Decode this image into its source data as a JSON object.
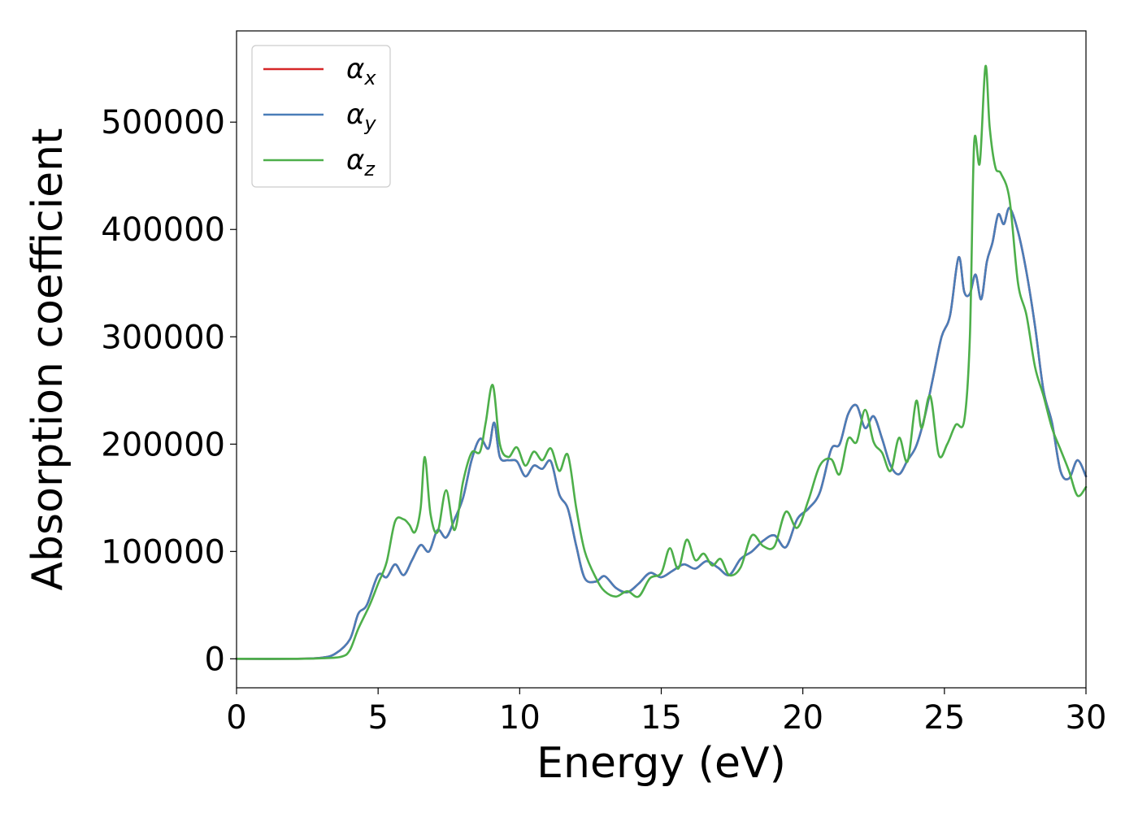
{
  "chart_data": {
    "type": "line",
    "title": "",
    "xlabel": "Energy (eV)",
    "ylabel": "Absorption coefficient",
    "xlim": [
      0,
      30
    ],
    "ylim": [
      -27000,
      585000
    ],
    "xticks": [
      0,
      5,
      10,
      15,
      20,
      25,
      30
    ],
    "yticks": [
      0,
      100000,
      200000,
      300000,
      400000,
      500000
    ],
    "grid": false,
    "legend_position": "top-left",
    "series": [
      {
        "name": "α_x",
        "symbol": "α",
        "subscript": "x",
        "color": "#d62728",
        "x": [
          0,
          2,
          3,
          3.5,
          4,
          4.3,
          4.6,
          5,
          5.3,
          5.6,
          5.9,
          6.2,
          6.5,
          6.8,
          7.1,
          7.4,
          7.7,
          8,
          8.3,
          8.6,
          8.9,
          9.1,
          9.3,
          9.6,
          9.9,
          10.2,
          10.5,
          10.8,
          11.1,
          11.4,
          11.7,
          12,
          12.3,
          12.7,
          13,
          13.4,
          13.8,
          14.2,
          14.6,
          15,
          15.4,
          15.8,
          16.2,
          16.6,
          17,
          17.4,
          17.8,
          18.2,
          18.6,
          19,
          19.4,
          19.8,
          20.2,
          20.6,
          21,
          21.3,
          21.6,
          21.9,
          22.2,
          22.5,
          22.8,
          23.1,
          23.4,
          23.7,
          24,
          24.3,
          24.6,
          24.9,
          25.2,
          25.5,
          25.7,
          25.9,
          26.1,
          26.3,
          26.5,
          26.7,
          26.9,
          27.1,
          27.3,
          27.6,
          27.9,
          28.2,
          28.5,
          28.8,
          29.1,
          29.4,
          29.7,
          30
        ],
        "values": [
          0,
          0,
          1000,
          5000,
          18000,
          42000,
          50000,
          78000,
          76000,
          88000,
          78000,
          92000,
          106000,
          100000,
          120000,
          113000,
          130000,
          150000,
          185000,
          205000,
          196000,
          220000,
          188000,
          185000,
          184000,
          170000,
          180000,
          177000,
          184000,
          153000,
          140000,
          105000,
          75000,
          72000,
          77000,
          66000,
          62000,
          70000,
          80000,
          76000,
          82000,
          88000,
          84000,
          91000,
          85000,
          78000,
          93000,
          100000,
          110000,
          115000,
          104000,
          130000,
          140000,
          155000,
          195000,
          200000,
          228000,
          236000,
          215000,
          226000,
          205000,
          180000,
          172000,
          185000,
          198000,
          225000,
          262000,
          300000,
          320000,
          374000,
          342000,
          340000,
          358000,
          335000,
          370000,
          388000,
          414000,
          405000,
          420000,
          398000,
          360000,
          310000,
          250000,
          220000,
          175000,
          168000,
          185000,
          170000
        ]
      },
      {
        "name": "α_y",
        "symbol": "α",
        "subscript": "y",
        "color": "#4a7db8",
        "x": [
          0,
          2,
          3,
          3.5,
          4,
          4.3,
          4.6,
          5,
          5.3,
          5.6,
          5.9,
          6.2,
          6.5,
          6.8,
          7.1,
          7.4,
          7.7,
          8,
          8.3,
          8.6,
          8.9,
          9.1,
          9.3,
          9.6,
          9.9,
          10.2,
          10.5,
          10.8,
          11.1,
          11.4,
          11.7,
          12,
          12.3,
          12.7,
          13,
          13.4,
          13.8,
          14.2,
          14.6,
          15,
          15.4,
          15.8,
          16.2,
          16.6,
          17,
          17.4,
          17.8,
          18.2,
          18.6,
          19,
          19.4,
          19.8,
          20.2,
          20.6,
          21,
          21.3,
          21.6,
          21.9,
          22.2,
          22.5,
          22.8,
          23.1,
          23.4,
          23.7,
          24,
          24.3,
          24.6,
          24.9,
          25.2,
          25.5,
          25.7,
          25.9,
          26.1,
          26.3,
          26.5,
          26.7,
          26.9,
          27.1,
          27.3,
          27.6,
          27.9,
          28.2,
          28.5,
          28.8,
          29.1,
          29.4,
          29.7,
          30
        ],
        "values": [
          0,
          0,
          1000,
          5000,
          18000,
          42000,
          50000,
          78000,
          76000,
          88000,
          78000,
          92000,
          106000,
          100000,
          120000,
          113000,
          130000,
          150000,
          185000,
          205000,
          196000,
          220000,
          188000,
          185000,
          184000,
          170000,
          180000,
          177000,
          184000,
          153000,
          140000,
          105000,
          75000,
          72000,
          77000,
          66000,
          62000,
          70000,
          80000,
          76000,
          82000,
          88000,
          84000,
          91000,
          85000,
          78000,
          93000,
          100000,
          110000,
          115000,
          104000,
          130000,
          140000,
          155000,
          195000,
          200000,
          228000,
          236000,
          215000,
          226000,
          205000,
          180000,
          172000,
          185000,
          198000,
          225000,
          262000,
          300000,
          320000,
          374000,
          342000,
          340000,
          358000,
          335000,
          370000,
          388000,
          414000,
          405000,
          420000,
          398000,
          360000,
          310000,
          250000,
          220000,
          175000,
          168000,
          185000,
          170000
        ]
      },
      {
        "name": "α_z",
        "symbol": "α",
        "subscript": "z",
        "color": "#4daf4a",
        "x": [
          0,
          2,
          3,
          3.7,
          4,
          4.3,
          4.7,
          5,
          5.3,
          5.6,
          5.9,
          6.1,
          6.3,
          6.5,
          6.65,
          6.85,
          7.1,
          7.4,
          7.7,
          8,
          8.3,
          8.6,
          8.8,
          9.05,
          9.3,
          9.6,
          9.9,
          10.2,
          10.5,
          10.8,
          11.1,
          11.4,
          11.7,
          12,
          12.3,
          12.7,
          13,
          13.4,
          13.8,
          14.2,
          14.6,
          15,
          15.3,
          15.6,
          15.9,
          16.2,
          16.5,
          16.8,
          17.1,
          17.4,
          17.8,
          18.2,
          18.6,
          19,
          19.4,
          19.8,
          20.2,
          20.6,
          21,
          21.3,
          21.6,
          21.9,
          22.2,
          22.5,
          22.8,
          23.1,
          23.4,
          23.7,
          24,
          24.2,
          24.5,
          24.8,
          25.1,
          25.4,
          25.7,
          25.9,
          26.05,
          26.25,
          26.45,
          26.6,
          26.8,
          27,
          27.3,
          27.6,
          27.9,
          28.2,
          28.5,
          28.8,
          29.1,
          29.4,
          29.7,
          30
        ],
        "values": [
          0,
          0,
          500,
          2000,
          8000,
          28000,
          50000,
          70000,
          90000,
          128000,
          130000,
          125000,
          118000,
          140000,
          188000,
          135000,
          118000,
          157000,
          120000,
          165000,
          192000,
          193000,
          220000,
          255000,
          200000,
          188000,
          197000,
          180000,
          193000,
          185000,
          196000,
          175000,
          190000,
          140000,
          100000,
          75000,
          63000,
          58000,
          63000,
          58000,
          75000,
          80000,
          103000,
          84000,
          111000,
          92000,
          98000,
          87000,
          93000,
          78000,
          85000,
          115000,
          105000,
          105000,
          137000,
          122000,
          148000,
          180000,
          186000,
          172000,
          205000,
          202000,
          232000,
          202000,
          192000,
          175000,
          206000,
          184000,
          240000,
          215000,
          245000,
          190000,
          200000,
          218000,
          222000,
          300000,
          480000,
          462000,
          552000,
          495000,
          458000,
          452000,
          428000,
          350000,
          320000,
          272000,
          245000,
          215000,
          195000,
          175000,
          152000,
          160000
        ]
      }
    ]
  }
}
